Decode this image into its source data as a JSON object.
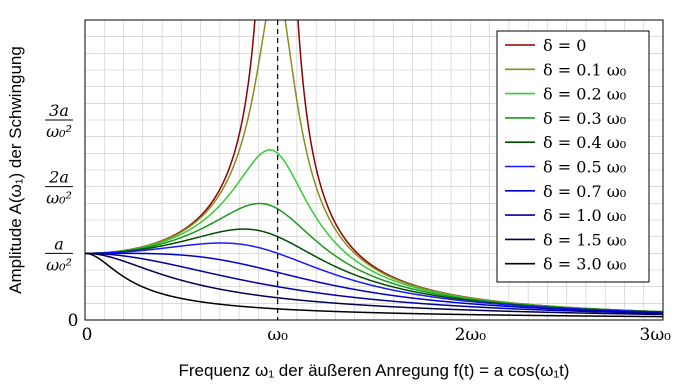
{
  "chart_data": {
    "type": "line",
    "xlabel": "Frequenz ω₁ der äußeren Anregung f(t) = a cos(ω₁t)",
    "ylabel": "Amplitude A(ω₁) der Schwingung",
    "x_unit": "ω₀",
    "y_unit": "a/ω₀²",
    "xlim": [
      0,
      3
    ],
    "ylim": [
      0,
      4.5
    ],
    "grid": true,
    "legend_position": "top-right",
    "resonance_marker": {
      "x": 1,
      "label": "ω₀",
      "style": "dashed"
    },
    "x_ticks": [
      {
        "value": 0,
        "label": "0"
      },
      {
        "value": 1,
        "label": "ω₀"
      },
      {
        "value": 2,
        "label": "2ω₀"
      },
      {
        "value": 3,
        "label": "3ω₀"
      }
    ],
    "y_ticks": [
      {
        "value": 0,
        "label": "0"
      },
      {
        "value": 1,
        "label_num": "a",
        "label_den": "ω₀²"
      },
      {
        "value": 2,
        "label_num": "2a",
        "label_den": "ω₀²"
      },
      {
        "value": 3,
        "label_num": "3a",
        "label_den": "ω₀²"
      }
    ],
    "model": "A = 1 / sqrt((1 - x²)² + (2·δ·x)²)",
    "series": [
      {
        "name": "δ = 0",
        "delta": 0.0,
        "color": "#8b0000"
      },
      {
        "name": "δ = 0.1 ω₀",
        "delta": 0.1,
        "color": "#8b8b1f"
      },
      {
        "name": "δ = 0.2 ω₀",
        "delta": 0.2,
        "color": "#33cc33"
      },
      {
        "name": "δ = 0.3 ω₀",
        "delta": 0.3,
        "color": "#1a991a"
      },
      {
        "name": "δ = 0.4 ω₀",
        "delta": 0.4,
        "color": "#004d00"
      },
      {
        "name": "δ = 0.5 ω₀",
        "delta": 0.5,
        "color": "#1a1aff"
      },
      {
        "name": "δ = 0.7 ω₀",
        "delta": 0.7,
        "color": "#0000cc"
      },
      {
        "name": "δ = 1.0 ω₀",
        "delta": 1.0,
        "color": "#0000a0"
      },
      {
        "name": "δ = 1.5 ω₀",
        "delta": 1.5,
        "color": "#00004d"
      },
      {
        "name": "δ = 3.0 ω₀",
        "delta": 3.0,
        "color": "#000000"
      }
    ]
  }
}
